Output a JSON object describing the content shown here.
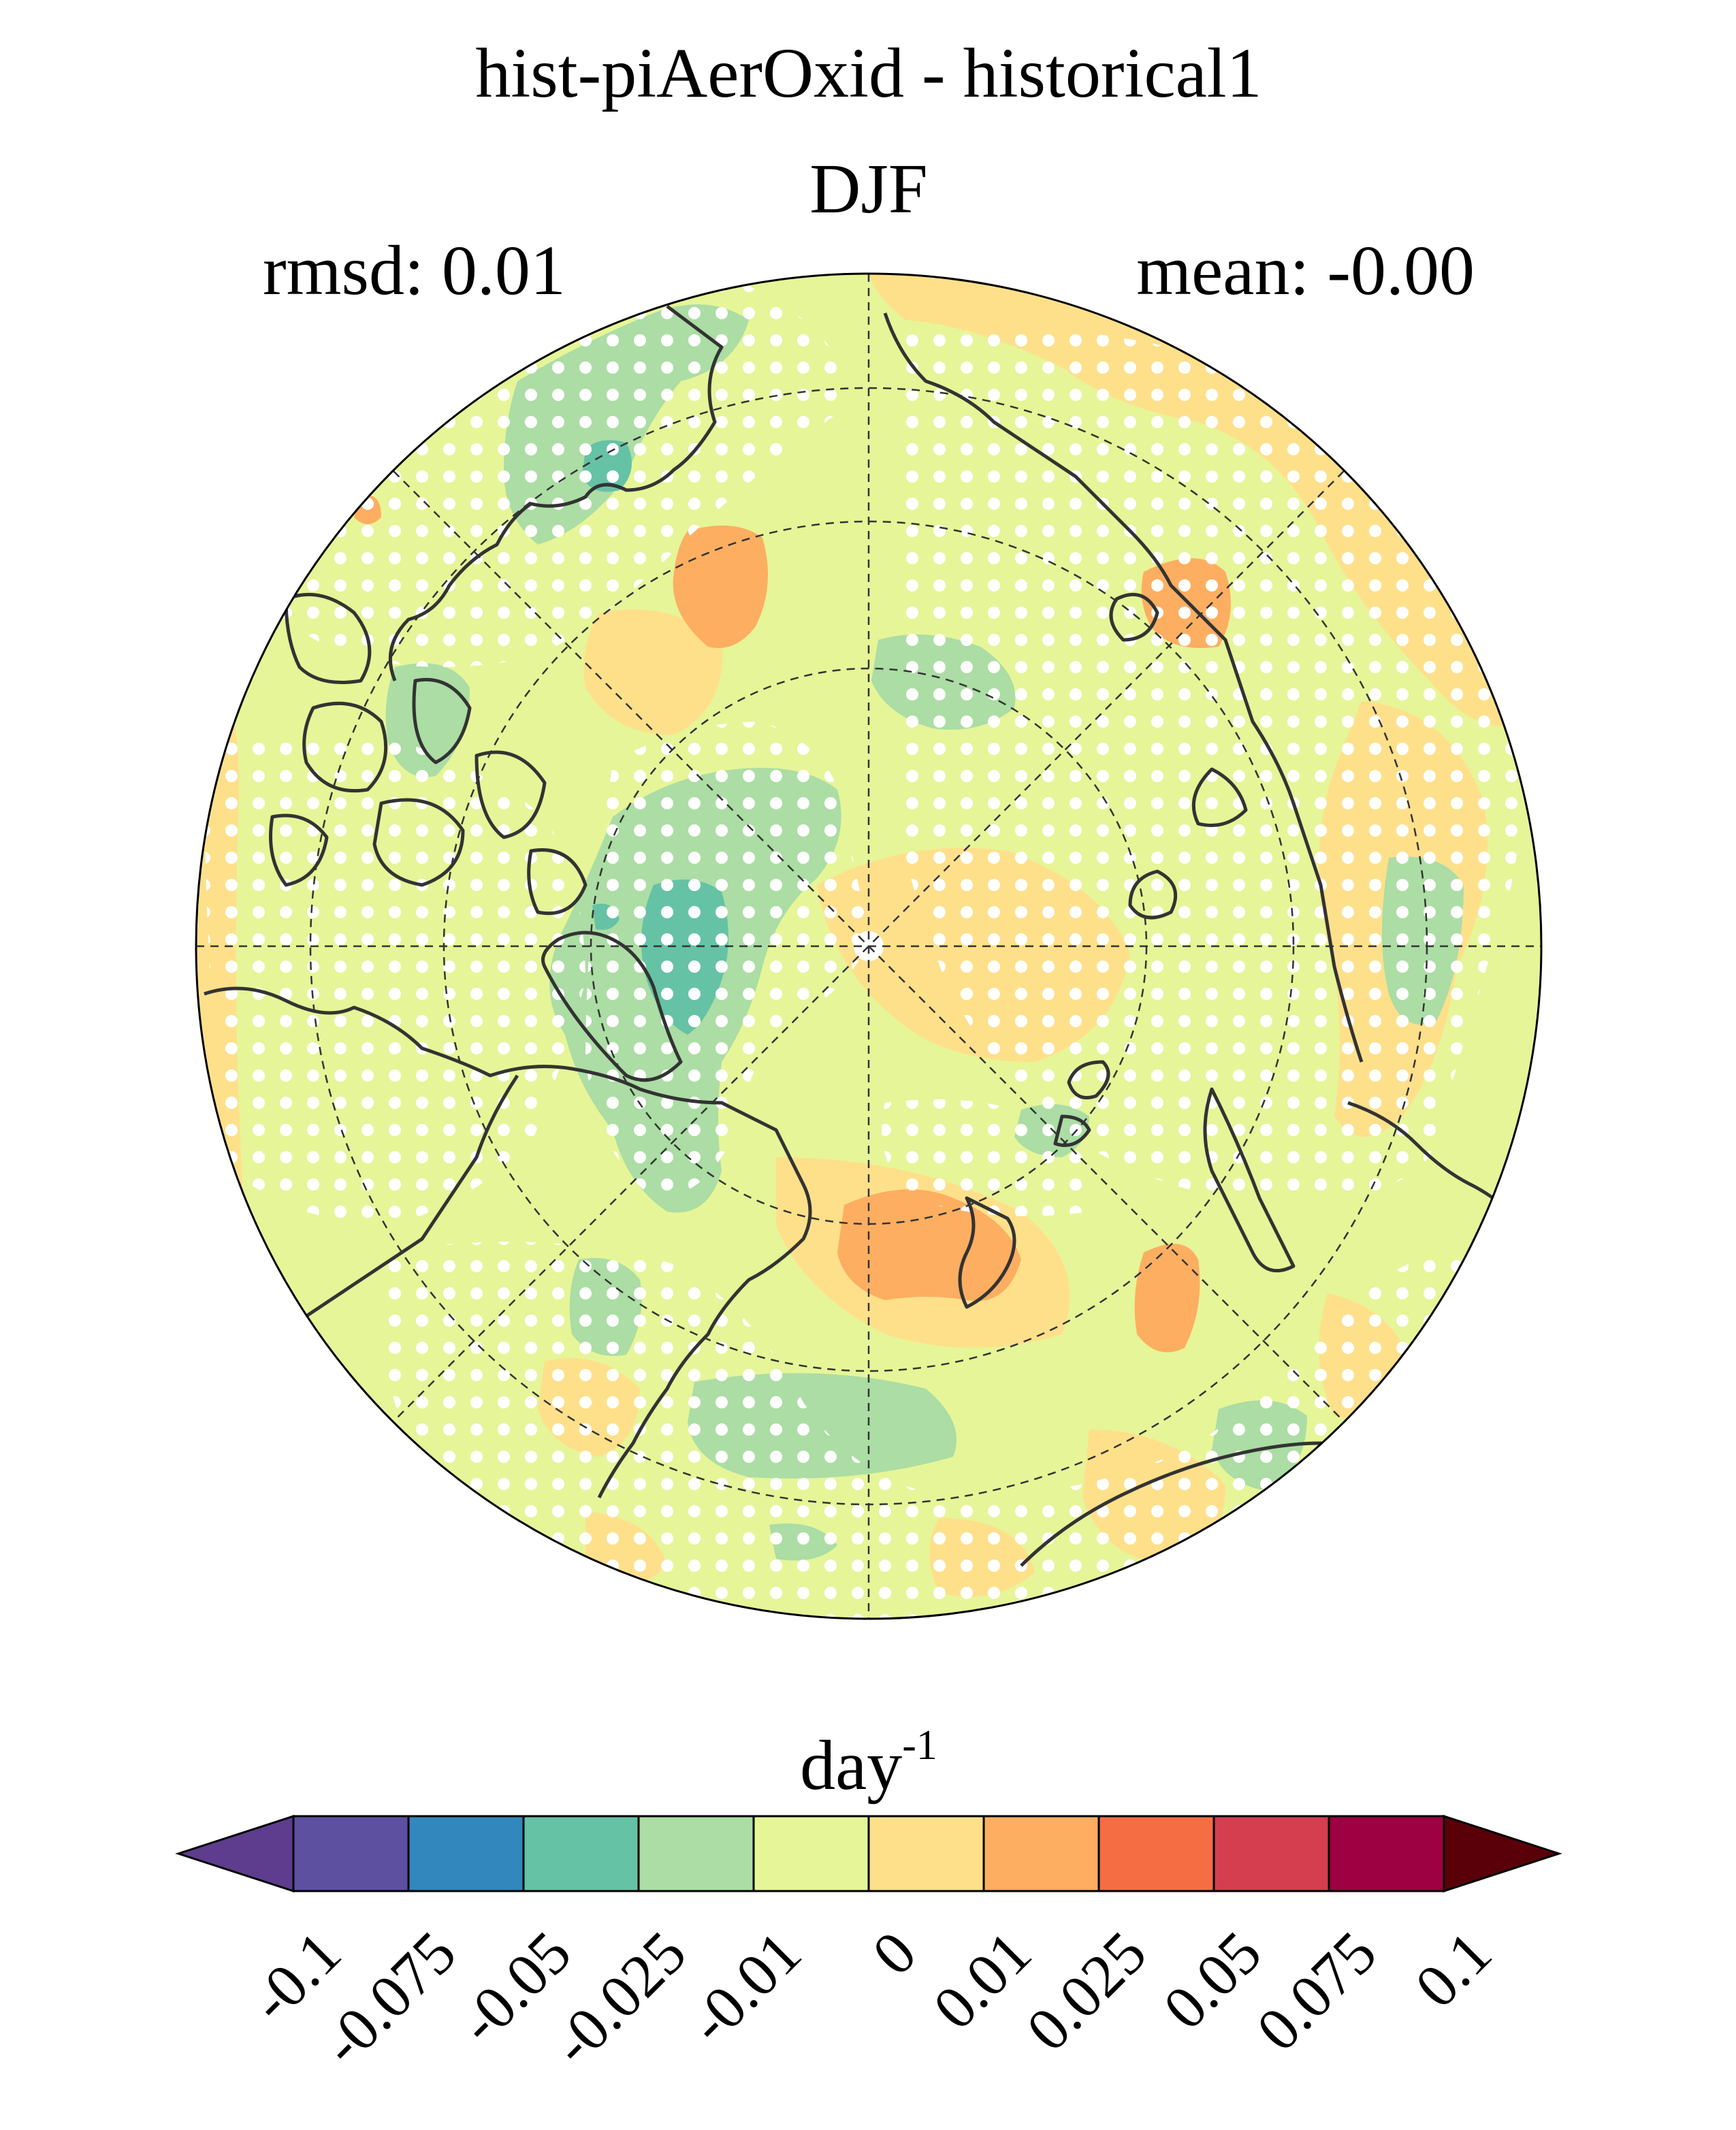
{
  "header": {
    "title": "hist-piAerOxid - historical1",
    "season": "DJF",
    "rmsd": "rmsd: 0.01",
    "mean": "mean: -0.00"
  },
  "colorbar": {
    "unit": "day",
    "unit_exponent": "-1",
    "colors": [
      "#5e3d8e",
      "#5e50a1",
      "#3287bc",
      "#66c2a5",
      "#abdda4",
      "#e6f598",
      "#fee08b",
      "#fdae61",
      "#f46d43",
      "#d53e4f",
      "#9e0142",
      "#5a0009"
    ],
    "ticks": [
      "-0.1",
      "-0.075",
      "-0.05",
      "-0.025",
      "-0.01",
      "0",
      "0.01",
      "0.025",
      "0.05",
      "0.075",
      "0.1"
    ]
  },
  "map": {
    "projection": "north-polar-stereographic",
    "stippling": "significance",
    "coastline_color": "#333333"
  }
}
